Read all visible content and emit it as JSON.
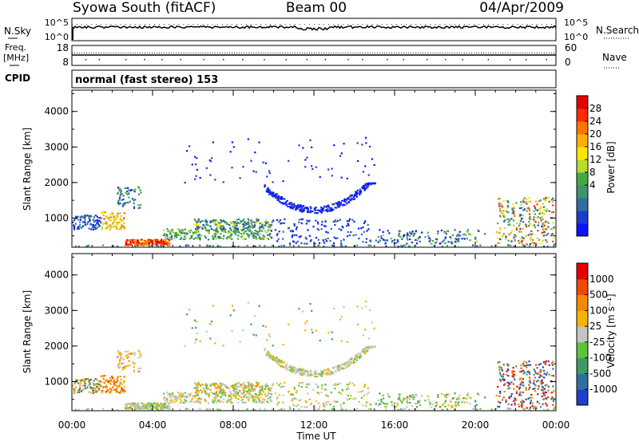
{
  "header": {
    "station": "Syowa South (fitACF)",
    "beam": "Beam 00",
    "date": "04/Apr/2009"
  },
  "top_panels": {
    "nsky_label": "N.Sky",
    "nsky_ticks": [
      "10^5",
      "10^0"
    ],
    "nsearch_label": "N.Search",
    "nsearch_ticks": [
      "10^5",
      "10^0"
    ],
    "freq_label_1": "Freq.",
    "freq_label_2": "[MHz]",
    "freq_ticks": [
      "18",
      "8"
    ],
    "nave_label": "Nave",
    "nave_ticks": [
      "60",
      "0"
    ],
    "cpid_label": "CPID",
    "cpid_text": "normal (fast stereo) 153"
  },
  "chart_data": [
    {
      "type": "heatmap",
      "name": "power",
      "ylabel": "Slant Range [km]",
      "yticks": [
        "4000",
        "3000",
        "2000",
        "1000"
      ],
      "ylim": [
        180,
        4600
      ],
      "xlim": [
        0,
        24
      ],
      "colorbar": {
        "label": "Power [dB]",
        "ticks": [
          "28",
          "24",
          "20",
          "16",
          "12",
          "8",
          "4"
        ],
        "colors": [
          "#0a14ff",
          "#1e3ccc",
          "#2f6f9e",
          "#3f9470",
          "#44aa44",
          "#b7dc2a",
          "#ffe600",
          "#ffb000",
          "#ff7400",
          "#ff2a00",
          "#e60000"
        ]
      }
    },
    {
      "type": "heatmap",
      "name": "velocity",
      "ylabel": "Slant Range [km]",
      "yticks": [
        "4000",
        "3000",
        "2000",
        "1000"
      ],
      "ylim": [
        180,
        4600
      ],
      "xlim": [
        0,
        24
      ],
      "xlabel": "Time UT",
      "xticks": [
        "00:00",
        "04:00",
        "08:00",
        "12:00",
        "16:00",
        "20:00",
        "00:00"
      ],
      "colorbar": {
        "label": "Velocity [m s⁻¹]",
        "ticks": [
          "1000",
          "500",
          "100",
          "25",
          "-25",
          "-100",
          "-500",
          "-1000"
        ],
        "colors": [
          "#1e3fc8",
          "#2d6fa3",
          "#3f9a6a",
          "#5bc43b",
          "#c4c4c4",
          "#f4b400",
          "#f58a00",
          "#f04a00",
          "#e60000"
        ]
      }
    }
  ]
}
